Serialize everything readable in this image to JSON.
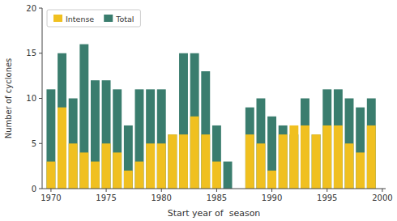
{
  "chart_data": {
    "type": "bar",
    "x": [
      1970,
      1971,
      1972,
      1973,
      1974,
      1975,
      1976,
      1977,
      1978,
      1979,
      1980,
      1981,
      1982,
      1983,
      1984,
      1985,
      1986,
      1988,
      1989,
      1990,
      1991,
      1992,
      1993,
      1994,
      1995,
      1996,
      1997,
      1998,
      1999
    ],
    "series": [
      {
        "name": "Total",
        "color": "#3a7d6e",
        "values": [
          11,
          15,
          10,
          16,
          12,
          12,
          11,
          7,
          11,
          11,
          11,
          6,
          15,
          15,
          13,
          7,
          3,
          9,
          10,
          8,
          7,
          6,
          10,
          6,
          11,
          11,
          10,
          9,
          10
        ]
      },
      {
        "name": "Intense",
        "color": "#f0c020",
        "values": [
          3,
          9,
          5,
          4,
          3,
          5,
          4,
          2,
          3,
          5,
          5,
          6,
          6,
          8,
          6,
          3,
          0,
          6,
          5,
          2,
          6,
          7,
          7,
          6,
          7,
          7,
          5,
          4,
          7
        ]
      }
    ],
    "xlabel": "Start year of  season",
    "ylabel": "Number of cyclones",
    "xlim": [
      1969.2,
      2000.3
    ],
    "xticks": [
      1970,
      1975,
      1980,
      1985,
      1990,
      1995,
      2000
    ],
    "ylim": [
      0,
      20
    ],
    "yticks": [
      0,
      5,
      10,
      15,
      20
    ],
    "legend": "upper left",
    "grid": false
  }
}
